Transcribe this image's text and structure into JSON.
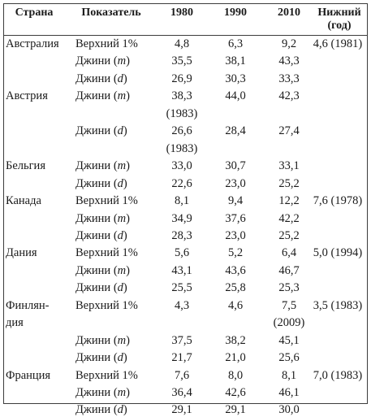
{
  "headers": {
    "country": "Страна",
    "indicator": "Показатель",
    "y1980": "1980",
    "y1990": "1990",
    "y2010": "2010",
    "lower_line1": "Нижний",
    "lower_line2": "(год)"
  },
  "rows": [
    {
      "country": "Австралия",
      "indicator": "Верхний 1%",
      "v1980": "4,8",
      "v1990": "6,3",
      "v2010": "9,2",
      "lower": "4,6 (1981)"
    },
    {
      "country": "",
      "indicator": "Джини",
      "param": "m",
      "v1980": "35,5",
      "v1990": "38,1",
      "v2010": "43,3",
      "lower": ""
    },
    {
      "country": "",
      "indicator": "Джини",
      "param": "d",
      "v1980": "26,9",
      "v1990": "30,3",
      "v2010": "33,3",
      "lower": ""
    },
    {
      "country": "Австрия",
      "indicator": "Джини",
      "param": "m",
      "v1980": "38,3",
      "v1990": "44,0",
      "v2010": "42,3",
      "lower": ""
    },
    {
      "country": "",
      "indicator": "",
      "v1980": "(1983)",
      "v1990": "",
      "v2010": "",
      "lower": ""
    },
    {
      "country": "",
      "indicator": "Джини",
      "param": "d",
      "v1980": "26,6",
      "v1990": "28,4",
      "v2010": "27,4",
      "lower": ""
    },
    {
      "country": "",
      "indicator": "",
      "v1980": "(1983)",
      "v1990": "",
      "v2010": "",
      "lower": ""
    },
    {
      "country": "Бельгия",
      "indicator": "Джини",
      "param": "m",
      "v1980": "33,0",
      "v1990": "30,7",
      "v2010": "33,1",
      "lower": ""
    },
    {
      "country": "",
      "indicator": "Джини",
      "param": "d",
      "v1980": "22,6",
      "v1990": "23,0",
      "v2010": "25,2",
      "lower": ""
    },
    {
      "country": "Канада",
      "indicator": "Верхний 1%",
      "v1980": "8,1",
      "v1990": "9,4",
      "v2010": "12,2",
      "lower": "7,6 (1978)"
    },
    {
      "country": "",
      "indicator": "Джини",
      "param": "m",
      "v1980": "34,9",
      "v1990": "37,6",
      "v2010": "42,2",
      "lower": ""
    },
    {
      "country": "",
      "indicator": "Джини",
      "param": "d",
      "v1980": "28,3",
      "v1990": "23,0",
      "v2010": "25,2",
      "lower": ""
    },
    {
      "country": "Дания",
      "indicator": "Верхний 1%",
      "v1980": "5,6",
      "v1990": "5,2",
      "v2010": "6,4",
      "lower": "5,0 (1994)"
    },
    {
      "country": "",
      "indicator": "Джини",
      "param": "m",
      "v1980": "43,1",
      "v1990": "43,6",
      "v2010": "46,7",
      "lower": ""
    },
    {
      "country": "",
      "indicator": "Джини",
      "param": "d",
      "v1980": "25,5",
      "v1990": "25,8",
      "v2010": "25,3",
      "lower": ""
    },
    {
      "country": "Финлян-",
      "indicator": "Верхний 1%",
      "v1980": "4,3",
      "v1990": "4,6",
      "v2010": "7,5",
      "lower": "3,5 (1983)"
    },
    {
      "country": "дия",
      "indicator": "",
      "v1980": "",
      "v1990": "",
      "v2010": "(2009)",
      "lower": ""
    },
    {
      "country": "",
      "indicator": "Джини",
      "param": "m",
      "v1980": "37,5",
      "v1990": "38,2",
      "v2010": "45,1",
      "lower": ""
    },
    {
      "country": "",
      "indicator": "Джини",
      "param": "d",
      "v1980": "21,7",
      "v1990": "21,0",
      "v2010": "25,6",
      "lower": ""
    },
    {
      "country": "Франция",
      "indicator": "Верхний 1%",
      "v1980": "7,6",
      "v1990": "8,0",
      "v2010": "8,1",
      "lower": "7,0 (1983)"
    },
    {
      "country": "",
      "indicator": "Джини",
      "param": "m",
      "v1980": "36,4",
      "v1990": "42,6",
      "v2010": "46,1",
      "lower": ""
    },
    {
      "country": "",
      "indicator": "Джини",
      "param": "d",
      "v1980": "29,1",
      "v1990": "29,1",
      "v2010": "30,0",
      "lower": ""
    }
  ]
}
